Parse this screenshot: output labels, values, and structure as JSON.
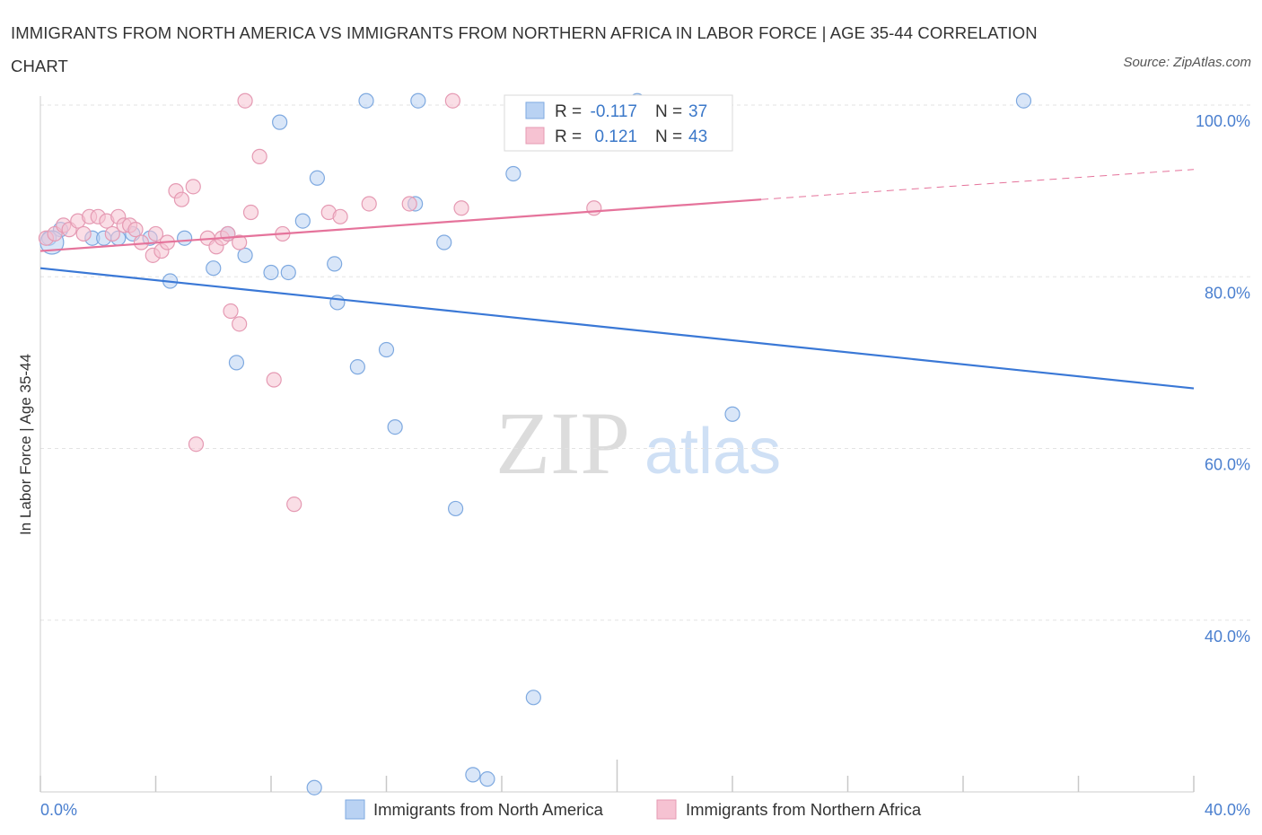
{
  "title": "IMMIGRANTS FROM NORTH AMERICA VS IMMIGRANTS FROM NORTHERN AFRICA IN LABOR FORCE | AGE 35-44 CORRELATION CHART",
  "source": "Source: ZipAtlas.com",
  "watermark": {
    "zip": "ZIP",
    "atlas": "atlas"
  },
  "chart_data": {
    "type": "scatter",
    "ylabel": "In Labor Force | Age 35-44",
    "xlim": [
      0,
      40
    ],
    "ylim": [
      20,
      100
    ],
    "x_tick_labels": [
      "0.0%",
      "40.0%"
    ],
    "y_ticks": [
      {
        "value": 100,
        "label": "100.0%"
      },
      {
        "value": 80,
        "label": "80.0%"
      },
      {
        "value": 60,
        "label": "60.0%"
      },
      {
        "value": 40,
        "label": "40.0%"
      }
    ],
    "colors": {
      "blue": "#3a78d6",
      "pink": "#e5739b",
      "blue_fill": "#b9d2f3",
      "pink_fill": "#f6c2d2"
    },
    "legend": [
      {
        "r_label": "R =",
        "r_value": "-0.117",
        "n_label": "N =",
        "n_value": "37"
      },
      {
        "r_label": "R =",
        "r_value": "0.121",
        "n_label": "N =",
        "n_value": "43"
      }
    ],
    "series": [
      {
        "name": "Immigrants from North America",
        "color": "blue",
        "trend": {
          "x0": 0.0,
          "y0": 81.0,
          "x1": 40.0,
          "y1": 67.0
        },
        "points": [
          [
            0.3,
            84.5
          ],
          [
            0.7,
            85.5
          ],
          [
            1.8,
            84.5
          ],
          [
            2.2,
            84.5
          ],
          [
            2.7,
            84.5
          ],
          [
            3.2,
            85.0
          ],
          [
            3.8,
            84.5
          ],
          [
            4.5,
            79.5
          ],
          [
            5.0,
            84.5
          ],
          [
            6.0,
            81.0
          ],
          [
            6.5,
            85.0
          ],
          [
            6.8,
            70.0
          ],
          [
            7.1,
            82.5
          ],
          [
            8.0,
            80.5
          ],
          [
            8.6,
            80.5
          ],
          [
            9.1,
            86.5
          ],
          [
            10.2,
            81.5
          ],
          [
            8.3,
            98.0
          ],
          [
            9.6,
            91.5
          ],
          [
            10.3,
            77.0
          ],
          [
            11.0,
            69.5
          ],
          [
            12.0,
            71.5
          ],
          [
            12.3,
            62.5
          ],
          [
            11.3,
            100.5
          ],
          [
            13.1,
            100.5
          ],
          [
            13.0,
            88.5
          ],
          [
            14.0,
            84.0
          ],
          [
            14.4,
            53.0
          ],
          [
            15.0,
            22.0
          ],
          [
            15.5,
            21.5
          ],
          [
            16.4,
            92.0
          ],
          [
            17.1,
            31.0
          ],
          [
            20.7,
            100.5
          ],
          [
            24.0,
            64.0
          ],
          [
            34.1,
            100.5
          ],
          [
            9.5,
            20.5
          ],
          [
            0.4,
            84.0
          ]
        ]
      },
      {
        "name": "Immigrants from Northern Africa",
        "color": "pink",
        "trend": {
          "x0": 0.0,
          "y0": 83.0,
          "x1": 25.0,
          "y1": 89.0,
          "x_dash_end": 40.0,
          "y_dash_end": 92.5
        },
        "points": [
          [
            0.2,
            84.5
          ],
          [
            0.5,
            85.0
          ],
          [
            0.8,
            86.0
          ],
          [
            1.0,
            85.5
          ],
          [
            1.3,
            86.5
          ],
          [
            1.5,
            85.0
          ],
          [
            1.7,
            87.0
          ],
          [
            2.0,
            87.0
          ],
          [
            2.3,
            86.5
          ],
          [
            2.5,
            85.0
          ],
          [
            2.7,
            87.0
          ],
          [
            2.9,
            86.0
          ],
          [
            3.1,
            86.0
          ],
          [
            3.3,
            85.5
          ],
          [
            3.5,
            84.0
          ],
          [
            3.9,
            82.5
          ],
          [
            4.2,
            83.0
          ],
          [
            4.4,
            84.0
          ],
          [
            4.7,
            90.0
          ],
          [
            4.9,
            89.0
          ],
          [
            5.3,
            90.5
          ],
          [
            5.4,
            60.5
          ],
          [
            5.8,
            84.5
          ],
          [
            6.1,
            83.5
          ],
          [
            6.3,
            84.5
          ],
          [
            6.5,
            85.0
          ],
          [
            6.6,
            76.0
          ],
          [
            6.9,
            74.5
          ],
          [
            7.3,
            87.5
          ],
          [
            7.1,
            100.5
          ],
          [
            7.6,
            94.0
          ],
          [
            8.1,
            68.0
          ],
          [
            8.4,
            85.0
          ],
          [
            8.8,
            53.5
          ],
          [
            10.0,
            87.5
          ],
          [
            10.4,
            87.0
          ],
          [
            11.4,
            88.5
          ],
          [
            12.8,
            88.5
          ],
          [
            14.3,
            100.5
          ],
          [
            14.6,
            88.0
          ],
          [
            19.2,
            88.0
          ],
          [
            6.9,
            84.0
          ],
          [
            4.0,
            85.0
          ]
        ]
      }
    ],
    "bottom_legend": [
      "Immigrants from North America",
      "Immigrants from Northern Africa"
    ]
  }
}
